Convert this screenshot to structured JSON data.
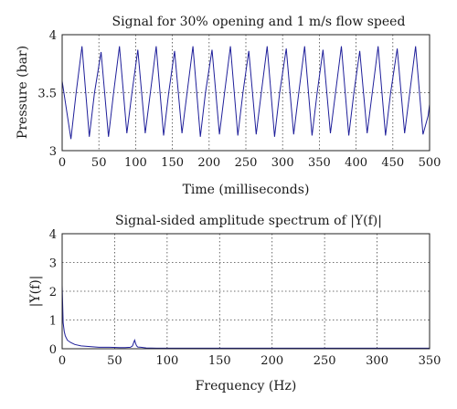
{
  "chart_data": [
    {
      "type": "line",
      "title": "Signal for 30% opening and 1 m/s flow speed",
      "xlabel": "Time (milliseconds)",
      "ylabel": "Pressure (bar)",
      "xlim": [
        0,
        500
      ],
      "ylim": [
        3,
        4
      ],
      "xticks": [
        0,
        50,
        100,
        150,
        200,
        250,
        300,
        350,
        400,
        450,
        500
      ],
      "yticks": [
        3,
        3.5,
        4
      ],
      "grid": true,
      "series": [
        {
          "color": "#1f1f9a",
          "x": [
            0,
            12,
            19,
            27,
            37,
            44,
            53,
            63,
            70,
            78,
            88,
            95,
            103,
            113,
            120,
            128,
            138,
            145,
            153,
            163,
            170,
            178,
            188,
            195,
            204,
            214,
            221,
            229,
            239,
            246,
            254,
            264,
            271,
            279,
            289,
            296,
            305,
            315,
            322,
            330,
            340,
            347,
            355,
            365,
            372,
            380,
            390,
            397,
            405,
            415,
            422,
            430,
            440,
            447,
            456,
            466,
            473,
            481,
            491,
            498,
            500
          ],
          "y": [
            3.6,
            3.1,
            3.5,
            3.9,
            3.12,
            3.5,
            3.85,
            3.12,
            3.5,
            3.9,
            3.15,
            3.5,
            3.87,
            3.15,
            3.5,
            3.9,
            3.13,
            3.5,
            3.86,
            3.15,
            3.5,
            3.9,
            3.12,
            3.5,
            3.87,
            3.14,
            3.5,
            3.9,
            3.13,
            3.5,
            3.86,
            3.14,
            3.5,
            3.9,
            3.12,
            3.5,
            3.88,
            3.14,
            3.5,
            3.9,
            3.13,
            3.5,
            3.87,
            3.15,
            3.5,
            3.9,
            3.13,
            3.5,
            3.86,
            3.15,
            3.5,
            3.9,
            3.13,
            3.5,
            3.88,
            3.15,
            3.5,
            3.9,
            3.14,
            3.3,
            3.4
          ]
        }
      ]
    },
    {
      "type": "line",
      "title": "Signal-sided amplitude spectrum of |Y(f)|",
      "xlabel": "Frequency (Hz)",
      "ylabel": "|Y(f)|",
      "xlim": [
        0,
        350
      ],
      "ylim": [
        0,
        4
      ],
      "xticks": [
        0,
        50,
        100,
        150,
        200,
        250,
        300,
        350
      ],
      "yticks": [
        0,
        1,
        2,
        3,
        4
      ],
      "grid": true,
      "series": [
        {
          "color": "#1f1f9a",
          "x": [
            0,
            1,
            2,
            3,
            5,
            8,
            12,
            18,
            25,
            35,
            45,
            55,
            60,
            65,
            67,
            68,
            69,
            70,
            71,
            72,
            75,
            80,
            90,
            100,
            120,
            150,
            200,
            250,
            300,
            350
          ],
          "y": [
            2.2,
            0.9,
            0.6,
            0.45,
            0.3,
            0.22,
            0.15,
            0.1,
            0.08,
            0.05,
            0.05,
            0.04,
            0.04,
            0.05,
            0.1,
            0.2,
            0.3,
            0.18,
            0.1,
            0.06,
            0.05,
            0.03,
            0.02,
            0.02,
            0.02,
            0.02,
            0.02,
            0.02,
            0.02,
            0.02
          ]
        }
      ]
    }
  ]
}
